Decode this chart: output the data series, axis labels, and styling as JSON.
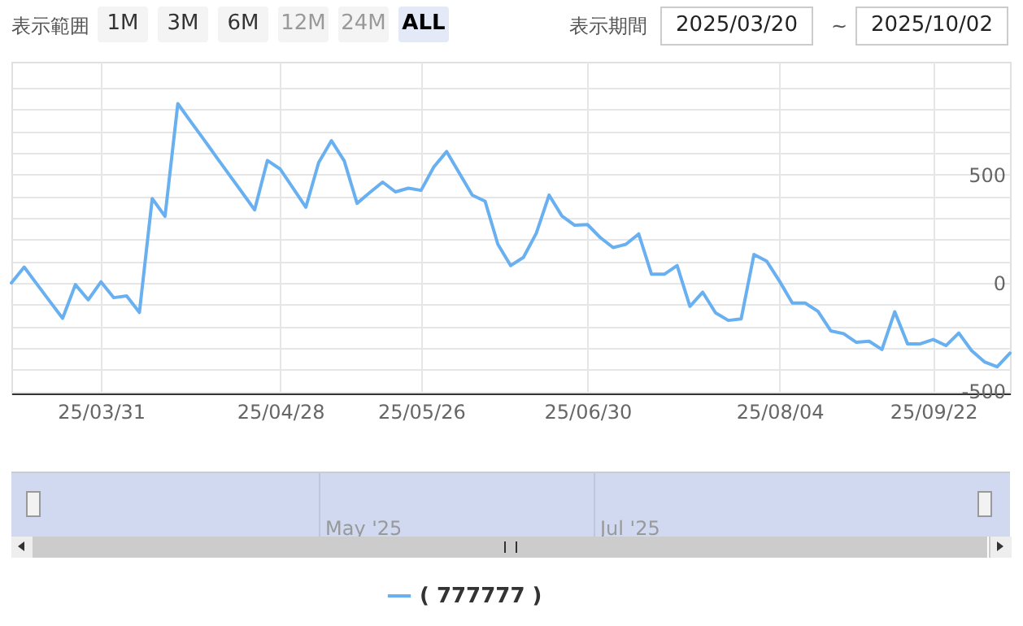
{
  "chart_data": {
    "type": "line",
    "categories": [
      null,
      null,
      null,
      null,
      null,
      null,
      null,
      "25/03/31",
      null,
      null,
      null,
      null,
      null,
      null,
      null,
      null,
      null,
      null,
      null,
      null,
      null,
      "25/04/28",
      null,
      null,
      null,
      null,
      null,
      null,
      null,
      null,
      null,
      null,
      "25/05/26",
      null,
      null,
      null,
      null,
      null,
      null,
      null,
      null,
      null,
      null,
      null,
      null,
      "25/06/30",
      null,
      null,
      null,
      null,
      null,
      null,
      null,
      null,
      null,
      null,
      null,
      null,
      null,
      null,
      "25/08/04",
      null,
      null,
      null,
      null,
      null,
      null,
      null,
      null,
      null,
      null,
      null,
      "25/09/22",
      null,
      null,
      null,
      null,
      null,
      null
    ],
    "series": [
      {
        "name": "( 777777 )",
        "color": "#68b0f0",
        "values": [
          0,
          73,
          -6,
          -85,
          -163,
          -8,
          -78,
          5,
          -68,
          -60,
          -136,
          389,
          307,
          827,
          745,
          664,
          582,
          500,
          419,
          337,
          565,
          525,
          437,
          349,
          555,
          656,
          563,
          367,
          417,
          465,
          420,
          437,
          427,
          535,
          606,
          505,
          405,
          377,
          178,
          80,
          118,
          229,
          405,
          309,
          266,
          269,
          209,
          163,
          178,
          226,
          40,
          40,
          80,
          -108,
          -43,
          -138,
          -173,
          -166,
          131,
          100,
          8,
          -93,
          -93,
          -131,
          -221,
          -234,
          -274,
          -269,
          -307,
          -133,
          -281,
          -281,
          -261,
          -289,
          -231,
          -312,
          -364,
          -387,
          -324
        ]
      }
    ],
    "ylim": [
      -510,
      1020
    ],
    "yticks": [
      -500,
      {
        "value": -400,
        "label": null
      },
      {
        "value": -300,
        "label": null
      },
      {
        "value": -200,
        "label": null
      },
      {
        "value": -100,
        "label": null
      },
      0,
      {
        "value": 100,
        "label": null
      },
      {
        "value": 200,
        "label": null
      },
      {
        "value": 300,
        "label": null
      },
      {
        "value": 400,
        "label": null
      },
      500,
      {
        "value": 600,
        "label": null
      },
      {
        "value": 700,
        "label": null
      },
      {
        "value": 800,
        "label": null
      },
      {
        "value": 900,
        "label": null
      }
    ],
    "grid": true,
    "legend": "bottom",
    "line_style": "solid",
    "annotations": [
      "表示範囲",
      "1M",
      "3M",
      "6M",
      "12M",
      "24M",
      "ALL",
      "表示期間",
      "2025/03/20",
      "~",
      "2025/10/02",
      "May '25",
      "Jul '25"
    ]
  }
}
